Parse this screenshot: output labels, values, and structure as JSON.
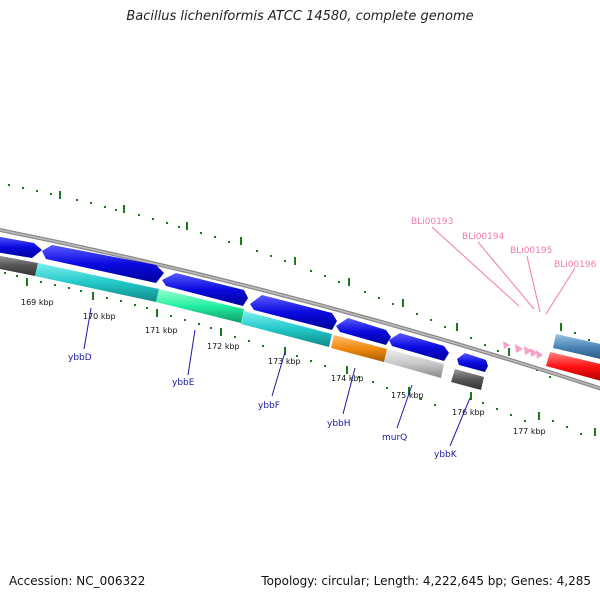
{
  "title": "Bacillus licheniformis ATCC 14580, complete genome",
  "accession": "Accession: NC_006322",
  "topology": "Topology: circular; Length: 4,222,645 bp; Genes: 4,285",
  "kbp_labels": [
    "169 kbp",
    "170 kbp",
    "171 kbp",
    "172 kbp",
    "173 kbp",
    "174 kbp",
    "175 kbp",
    "176 kbp",
    "177 kbp"
  ],
  "genes": [
    {
      "name": "ybbD",
      "color": "#1a1aa6"
    },
    {
      "name": "ybbE",
      "color": "#1a1aa6"
    },
    {
      "name": "ybbF",
      "color": "#1a1aa6"
    },
    {
      "name": "ybbH",
      "color": "#1a1aa6"
    },
    {
      "name": "murQ",
      "color": "#1a1aa6"
    },
    {
      "name": "ybbK",
      "color": "#1a1aa6"
    }
  ],
  "features": [
    {
      "name": "BLi00193",
      "color": "#f07ab0"
    },
    {
      "name": "BLi00194",
      "color": "#f07ab0"
    },
    {
      "name": "BLi00195",
      "color": "#f07ab0"
    },
    {
      "name": "BLi00196",
      "color": "#f07ab0"
    }
  ],
  "colors": {
    "forward_strand": "#0a0ae0",
    "cyan": "#22c8c8",
    "green": "#22f0a0",
    "orange": "#f08a10",
    "grey": "#c8c8c8",
    "dark_grey": "#555555",
    "steel_blue": "#4a86b8",
    "red": "#ff1010",
    "pink": "#f7a0c8",
    "tick": "#1a7a1a"
  }
}
